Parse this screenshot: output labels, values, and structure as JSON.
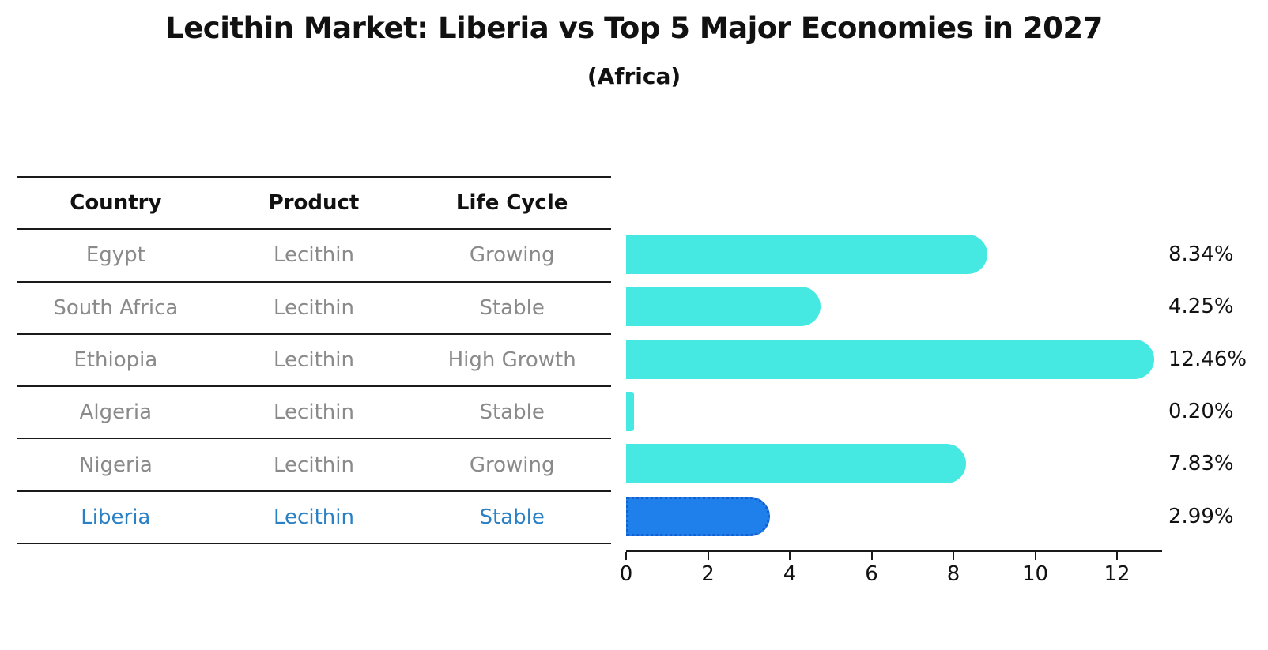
{
  "title": "Lecithin Market: Liberia vs Top 5 Major Economies in 2027",
  "subtitle": "(Africa)",
  "table": {
    "headers": [
      "Country",
      "Product",
      "Life Cycle"
    ],
    "rows": [
      {
        "country": "Egypt",
        "product": "Lecithin",
        "life_cycle": "Growing",
        "highlight": false
      },
      {
        "country": "South Africa",
        "product": "Lecithin",
        "life_cycle": "Stable",
        "highlight": false
      },
      {
        "country": "Ethiopia",
        "product": "Lecithin",
        "life_cycle": "High Growth",
        "highlight": false
      },
      {
        "country": "Algeria",
        "product": "Lecithin",
        "life_cycle": "Stable",
        "highlight": false
      },
      {
        "country": "Nigeria",
        "product": "Lecithin",
        "life_cycle": "Growing",
        "highlight": false
      },
      {
        "country": "Liberia",
        "product": "Lecithin",
        "life_cycle": "Stable",
        "highlight": true
      }
    ]
  },
  "chart_data": {
    "type": "bar",
    "orientation": "horizontal",
    "title": "Lecithin Market: Liberia vs Top 5 Major Economies in 2027",
    "subtitle": "(Africa)",
    "categories": [
      "Egypt",
      "South Africa",
      "Ethiopia",
      "Algeria",
      "Nigeria",
      "Liberia"
    ],
    "values": [
      8.34,
      4.25,
      12.46,
      0.2,
      7.83,
      2.99
    ],
    "value_labels": [
      "8.34%",
      "4.25%",
      "12.46%",
      "0.20%",
      "7.83%",
      "2.99%"
    ],
    "highlight_index": 5,
    "x_ticks": [
      0,
      2,
      4,
      6,
      8,
      10,
      12
    ],
    "xlim": [
      0,
      13.1
    ],
    "grid": false,
    "legend": "none",
    "colors": {
      "bar": "#46e8e2",
      "highlight_bar": "#1f80ec",
      "highlight_edge": "#145fd0",
      "highlight_text": "#2a80c5",
      "row_text": "#8a8a8a",
      "header_text": "#111111"
    }
  }
}
